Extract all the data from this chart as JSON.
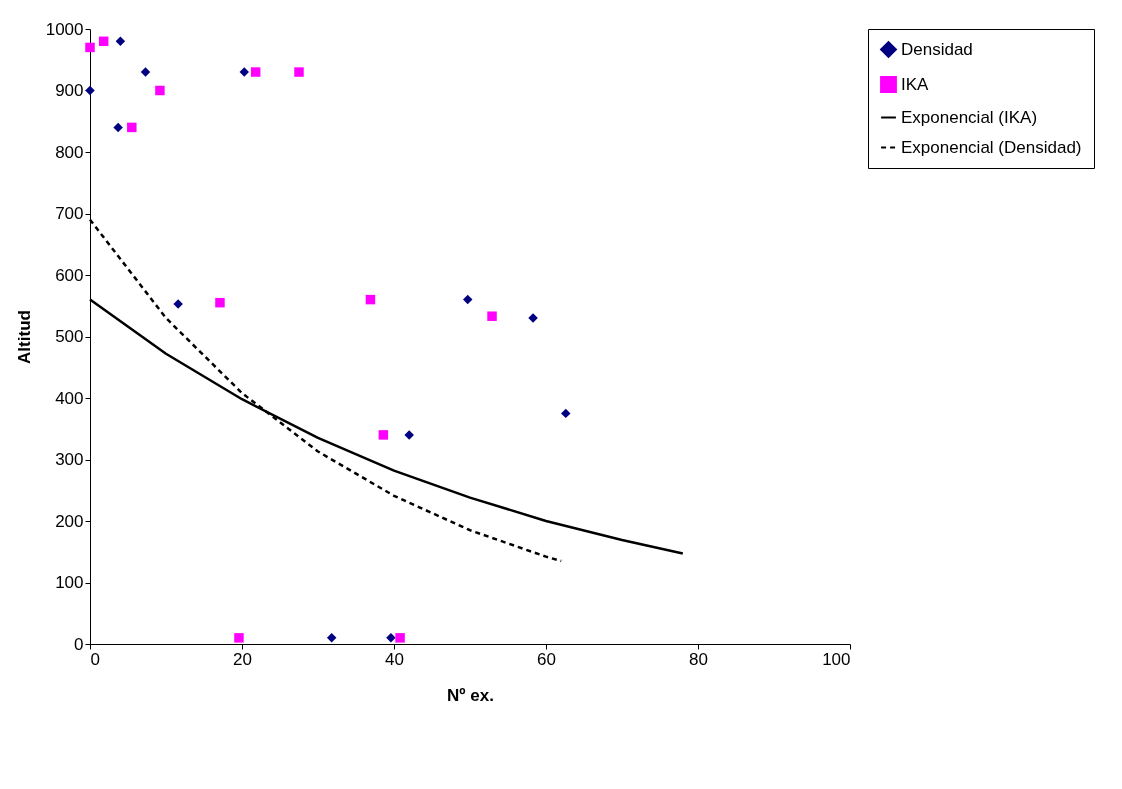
{
  "chart_data": {
    "type": "scatter",
    "xlabel": "Nº ex.",
    "ylabel": "Altitud",
    "xlim": [
      0,
      100
    ],
    "xticks": [
      0,
      20,
      40,
      60,
      80,
      100
    ],
    "ylim": [
      0,
      1000
    ],
    "yticks": [
      0,
      100,
      200,
      300,
      400,
      500,
      600,
      700,
      800,
      900,
      1000
    ],
    "grid": false,
    "legend": "right",
    "series": [
      {
        "name": "Densidad",
        "type": "scatter",
        "marker": "diamond",
        "color": "#000080",
        "x": [
          0,
          3.7,
          4,
          7.3,
          11.6,
          20.3,
          31.8,
          39.6,
          42,
          49.7,
          58.3,
          62.6
        ],
        "values": [
          900,
          840,
          980,
          930,
          553,
          930,
          10,
          10,
          340,
          560,
          530,
          375
        ]
      },
      {
        "name": "IKA",
        "type": "scatter",
        "marker": "square",
        "color": "#ff00ff",
        "x": [
          0,
          1.8,
          5.5,
          9.2,
          17.1,
          19.6,
          21.8,
          27.5,
          36.9,
          38.6,
          40.8,
          52.9
        ],
        "values": [
          970,
          980,
          840,
          900,
          555,
          10,
          930,
          930,
          560,
          340,
          10,
          533
        ]
      },
      {
        "name": "Exponencial (IKA)",
        "type": "line",
        "line_style": "solid",
        "color": "#000000",
        "x": [
          0,
          10,
          20,
          30,
          40,
          50,
          60,
          70,
          78
        ],
        "values": [
          560,
          472,
          398,
          335,
          282,
          238,
          200,
          169,
          147
        ]
      },
      {
        "name": "Exponencial (Densidad)",
        "type": "line",
        "line_style": "dashed",
        "color": "#000000",
        "x": [
          0,
          10,
          20,
          30,
          40,
          50,
          60,
          62
        ],
        "values": [
          690,
          530,
          408,
          313,
          241,
          185,
          142,
          135
        ]
      }
    ]
  }
}
